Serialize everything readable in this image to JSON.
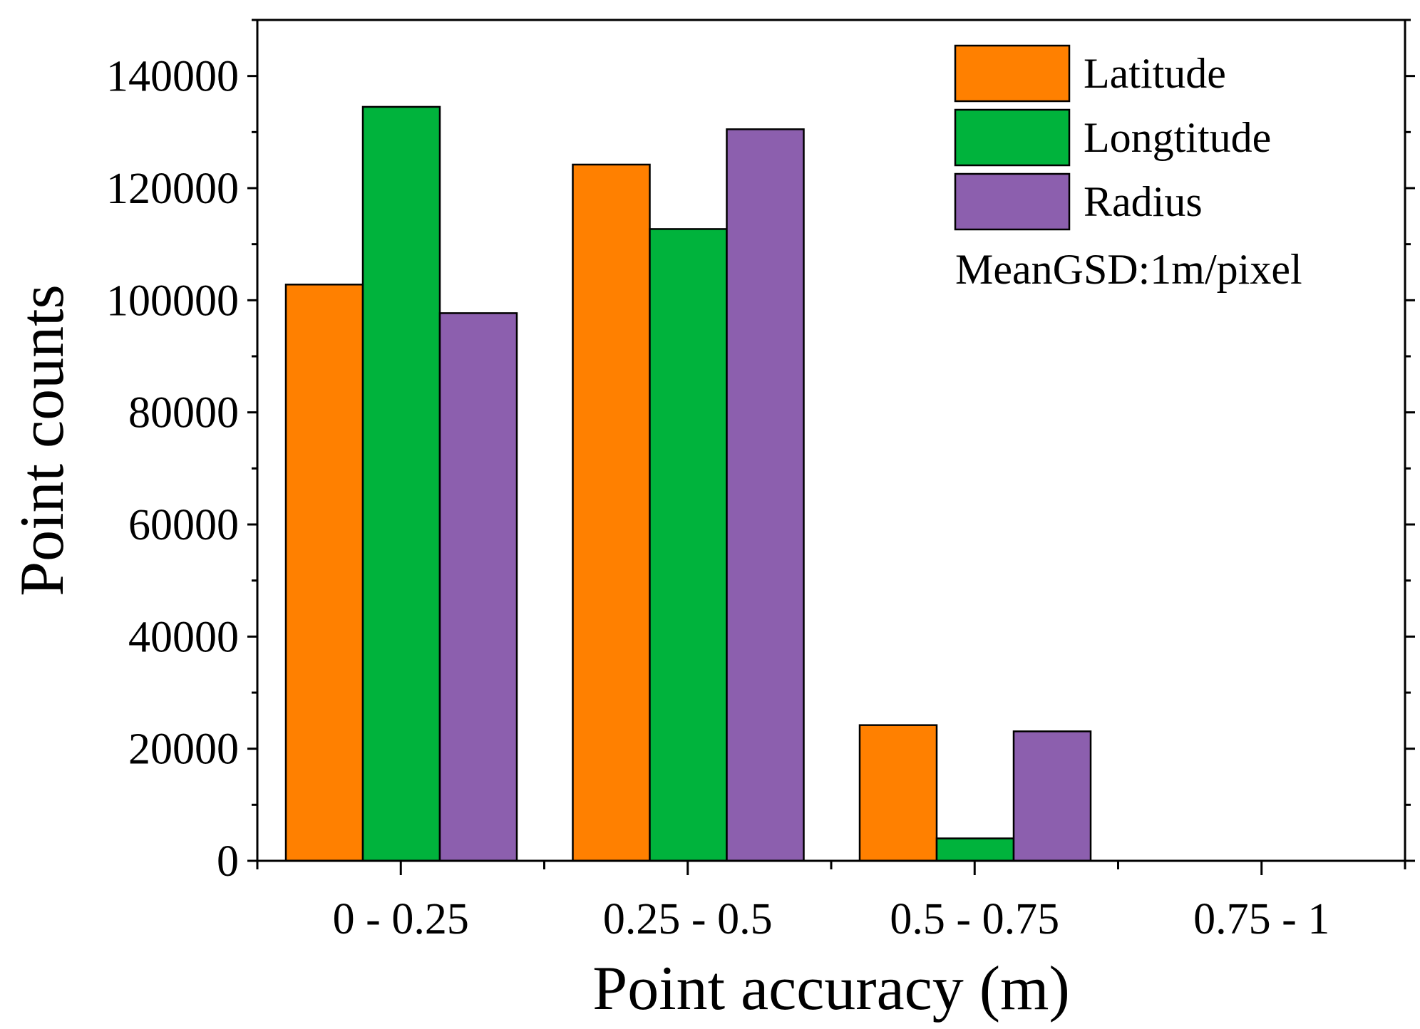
{
  "chart_data": {
    "type": "bar",
    "categories": [
      "0 - 0.25",
      "0.25 - 0.5",
      "0.5 - 0.75",
      "0.75 - 1"
    ],
    "series": [
      {
        "name": "Latitude",
        "color": "#FF8000",
        "values": [
          102800,
          124200,
          24200,
          0
        ]
      },
      {
        "name": "Longtitude",
        "color": "#00B33C",
        "values": [
          134500,
          112700,
          4000,
          0
        ]
      },
      {
        "name": "Radius",
        "color": "#8C5FAE",
        "values": [
          97700,
          130500,
          23100,
          0
        ]
      }
    ],
    "xlabel": "Point accuracy (m)",
    "ylabel": "Point counts",
    "ylim": [
      0,
      150000
    ],
    "yticks": [
      0,
      20000,
      40000,
      60000,
      80000,
      100000,
      120000,
      140000
    ],
    "ytick_labels": [
      "0",
      "20000",
      "40000",
      "60000",
      "80000",
      "100000",
      "120000",
      "140000"
    ],
    "annotation": "MeanGSD:1m/pixel",
    "legend_position": "top-right",
    "grid": false
  }
}
